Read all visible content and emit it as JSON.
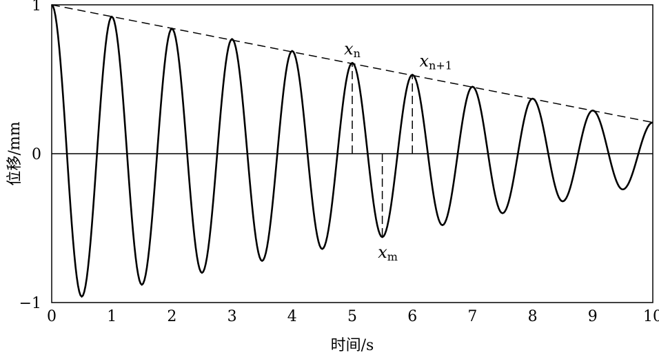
{
  "chart_data": {
    "type": "line",
    "title": "",
    "xlabel": "时间/s",
    "ylabel": "位移/mm",
    "xlim": [
      0,
      10
    ],
    "ylim": [
      -1,
      1
    ],
    "xticks": [
      "0",
      "1",
      "2",
      "3",
      "4",
      "5",
      "6",
      "7",
      "8",
      "9",
      "10"
    ],
    "yticks": [
      "-1",
      "0",
      "1"
    ],
    "grid": false,
    "series": [
      {
        "style": "solid",
        "x": [
          0,
          0.5,
          1,
          1.5,
          2,
          2.5,
          3,
          3.5,
          4,
          4.5,
          5,
          5.5,
          6,
          6.5,
          7,
          7.5,
          8,
          8.5,
          9,
          9.5,
          10
        ],
        "y": [
          1,
          -0.96,
          0.92,
          -0.88,
          0.84,
          -0.8,
          0.77,
          -0.72,
          0.69,
          -0.64,
          0.61,
          -0.56,
          0.53,
          -0.48,
          0.45,
          -0.4,
          0.37,
          -0.32,
          0.29,
          -0.24,
          0.21
        ]
      },
      {
        "style": "dashed",
        "x": [
          0,
          10
        ],
        "y": [
          1,
          0.21
        ]
      }
    ],
    "annotations": [
      {
        "base": "x",
        "sub": "n",
        "x": 5,
        "y": 0.61,
        "marker_from": 0
      },
      {
        "base": "x",
        "sub": "n+1",
        "x": 6,
        "y": 0.53,
        "marker_from": 0
      },
      {
        "base": "x",
        "sub": "m",
        "x": 5.5,
        "y": -0.56,
        "marker_from": 0
      }
    ]
  }
}
